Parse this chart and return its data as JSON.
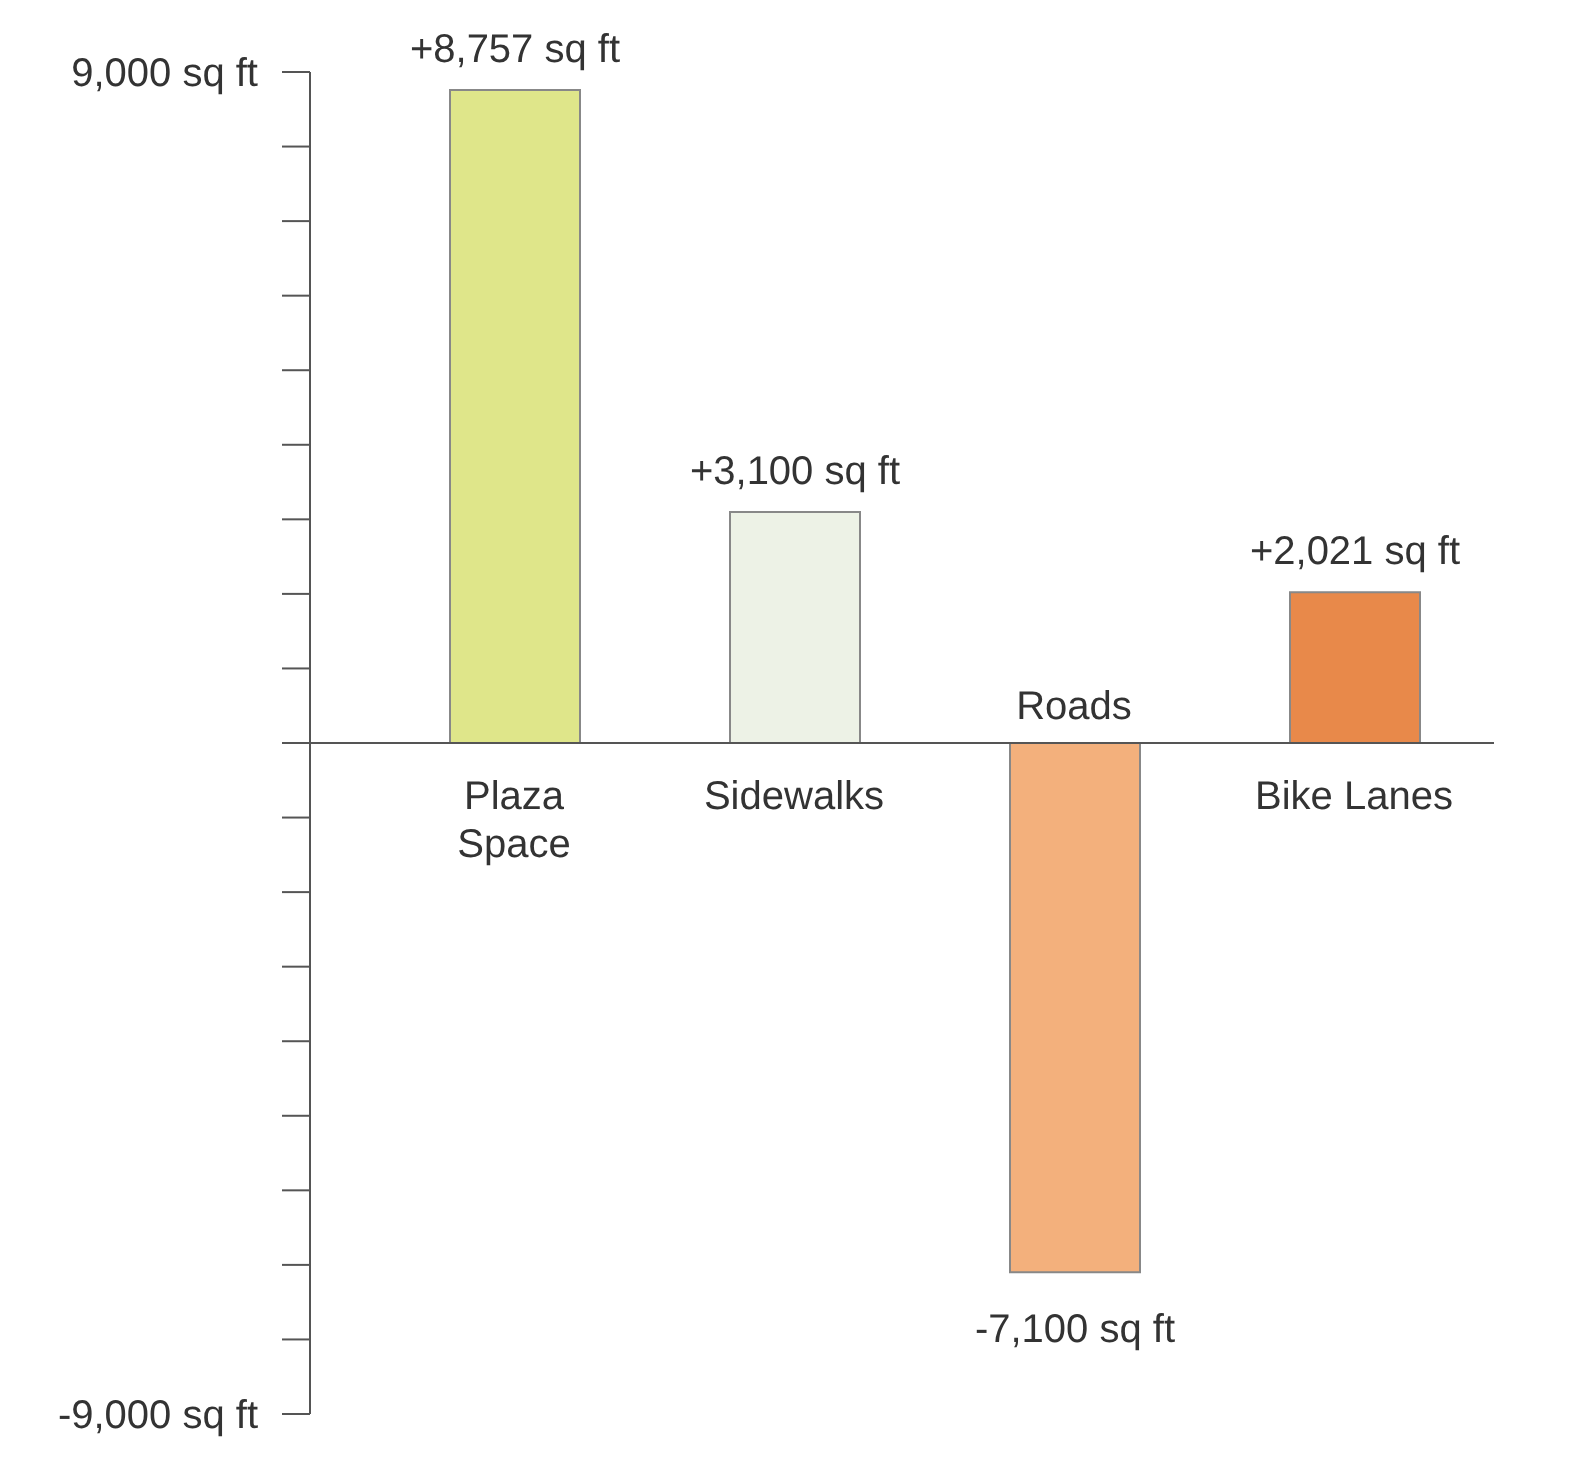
{
  "chart_data": {
    "type": "bar",
    "categories": [
      "Plaza Space",
      "Sidewalks",
      "Roads",
      "Bike Lanes"
    ],
    "values": [
      8757,
      3100,
      -7100,
      2021
    ],
    "colors": [
      "#dfe68a",
      "#edf2e6",
      "#f3b07c",
      "#e8894a"
    ],
    "value_labels": [
      "+8,757 sq ft",
      "+3,100 sq ft",
      "-7,100 sq ft",
      "+2,021 sq ft"
    ],
    "ylim": [
      -9000,
      9000
    ],
    "yticks": [
      {
        "value": 9000,
        "label": "9,000 sq ft"
      },
      {
        "value": 8000,
        "label": null
      },
      {
        "value": 7000,
        "label": null
      },
      {
        "value": 6000,
        "label": null
      },
      {
        "value": 5000,
        "label": null
      },
      {
        "value": 4000,
        "label": null
      },
      {
        "value": 3000,
        "label": null
      },
      {
        "value": 2000,
        "label": null
      },
      {
        "value": 1000,
        "label": null
      },
      {
        "value": 0,
        "label": null
      },
      {
        "value": -1000,
        "label": null
      },
      {
        "value": -2000,
        "label": null
      },
      {
        "value": -3000,
        "label": null
      },
      {
        "value": -4000,
        "label": null
      },
      {
        "value": -5000,
        "label": null
      },
      {
        "value": -6000,
        "label": null
      },
      {
        "value": -7000,
        "label": null
      },
      {
        "value": -8000,
        "label": null
      },
      {
        "value": -9000,
        "label": "-9,000 sq ft"
      }
    ],
    "grid": false,
    "legend": false
  }
}
